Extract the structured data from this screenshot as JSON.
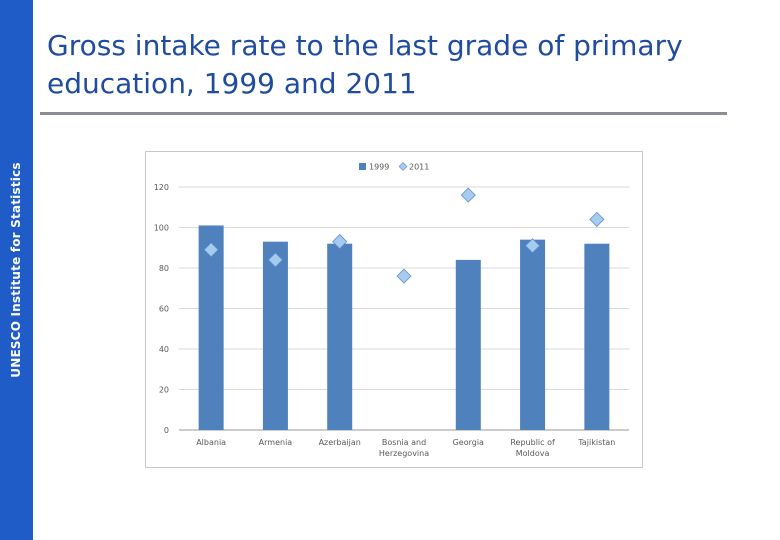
{
  "sidebar": {
    "label": "UNESCO Institute for Statistics"
  },
  "slide": {
    "title": "Gross intake rate to the last grade of primary education, 1999 and 2011"
  },
  "colors": {
    "sidebar": "#1f5cc8",
    "title": "#1f4c9e",
    "bar": "#4f81bd",
    "marker": "#a6cbed",
    "marker_stroke": "#5b8ed6"
  },
  "chart_data": {
    "type": "bar",
    "categories": [
      [
        "Albania"
      ],
      [
        "Armenia"
      ],
      [
        "Azerbaijan"
      ],
      [
        "Bosnia and",
        "Herzegovina"
      ],
      [
        "Georgia"
      ],
      [
        "Republic of",
        "Moldova"
      ],
      [
        "Tajikistan"
      ]
    ],
    "series": [
      {
        "name": "1999",
        "type": "bar",
        "values": [
          101,
          93,
          92,
          null,
          84,
          94,
          92
        ]
      },
      {
        "name": "2011",
        "type": "scatter",
        "values": [
          89,
          84,
          93,
          76,
          116,
          91,
          104
        ]
      }
    ],
    "ylim": [
      0,
      120
    ],
    "yticks": [
      0,
      20,
      40,
      60,
      80,
      100,
      120
    ],
    "grid": true,
    "legend": "top-center"
  }
}
